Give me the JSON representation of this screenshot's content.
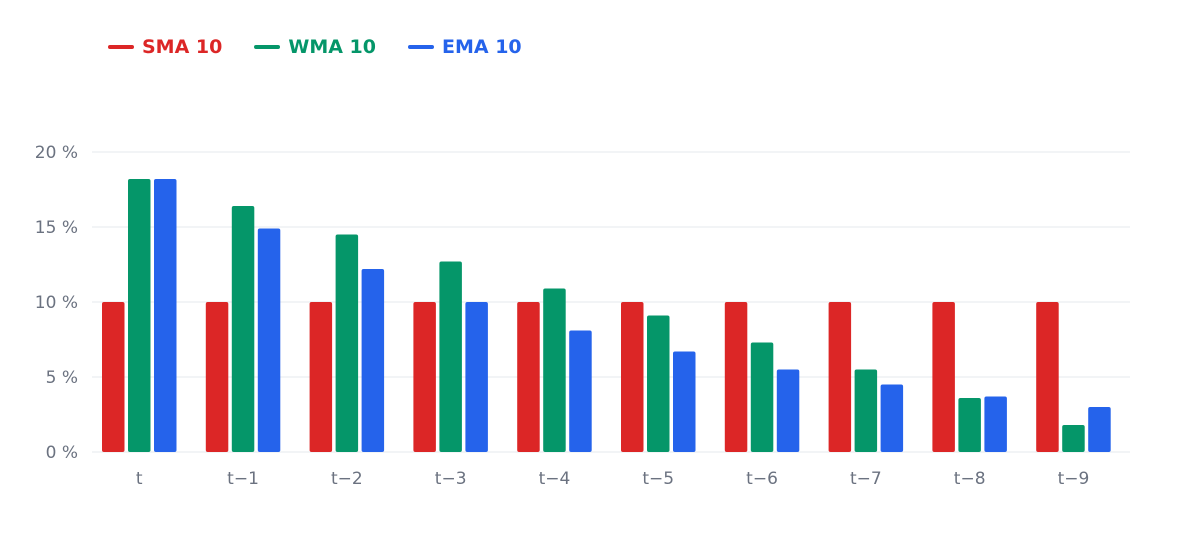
{
  "chart_data": {
    "type": "bar",
    "categories": [
      "t",
      "t−1",
      "t−2",
      "t−3",
      "t−4",
      "t−5",
      "t−6",
      "t−7",
      "t−8",
      "t−9"
    ],
    "series": [
      {
        "name": "SMA 10",
        "color": "#dc2626",
        "values": [
          10,
          10,
          10,
          10,
          10,
          10,
          10,
          10,
          10,
          10
        ]
      },
      {
        "name": "WMA 10",
        "color": "#059669",
        "values": [
          18.2,
          16.4,
          14.5,
          12.7,
          10.9,
          9.1,
          7.3,
          5.5,
          3.6,
          1.8
        ]
      },
      {
        "name": "EMA 10",
        "color": "#2563eb",
        "values": [
          18.2,
          14.9,
          12.2,
          10.0,
          8.1,
          6.7,
          5.5,
          4.5,
          3.7,
          3.0
        ]
      }
    ],
    "yticks": [
      "0 %",
      "5 %",
      "10 %",
      "15 %",
      "20 %"
    ],
    "ylim": [
      0,
      20
    ],
    "grid": true,
    "legend": "top-left",
    "title": "",
    "xlabel": "",
    "ylabel": ""
  }
}
